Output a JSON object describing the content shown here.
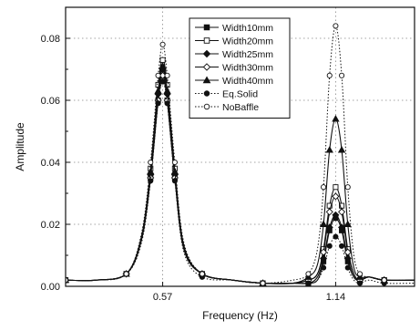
{
  "chart_data": {
    "type": "line",
    "title": "",
    "xlabel": "Frequency (Hz)",
    "ylabel": "Amplitude",
    "xlim": [
      0.25,
      1.4
    ],
    "ylim": [
      0,
      0.09
    ],
    "x_ticks": [
      0.57,
      1.14
    ],
    "x_tick_labels": [
      "0.57",
      "1.14"
    ],
    "y_ticks": [
      0,
      0.02,
      0.04,
      0.06,
      0.08
    ],
    "y_tick_labels": [
      "0.00",
      "0.02",
      "0.04",
      "0.06",
      "0.08"
    ],
    "grid": "dotted",
    "legend_position": "top-center",
    "series": [
      {
        "name": "Width10mm",
        "style": "solid",
        "marker": "filled-square",
        "x": [
          0.25,
          0.35,
          0.45,
          0.5,
          0.53,
          0.555,
          0.57,
          0.585,
          0.61,
          0.64,
          0.7,
          0.8,
          0.9,
          1.0,
          1.05,
          1.08,
          1.1,
          1.12,
          1.14,
          1.16,
          1.18,
          1.2,
          1.22,
          1.25,
          1.3,
          1.4
        ],
        "y": [
          0.002,
          0.002,
          0.004,
          0.015,
          0.035,
          0.06,
          0.068,
          0.06,
          0.035,
          0.012,
          0.004,
          0.002,
          0.001,
          0.001,
          0.001,
          0.002,
          0.008,
          0.018,
          0.022,
          0.018,
          0.008,
          0.003,
          0.002,
          0.003,
          0.002,
          0.002
        ]
      },
      {
        "name": "Width20mm",
        "style": "solid",
        "marker": "open-square",
        "x": [
          0.25,
          0.35,
          0.45,
          0.5,
          0.53,
          0.555,
          0.57,
          0.585,
          0.61,
          0.64,
          0.7,
          0.8,
          0.9,
          1.0,
          1.05,
          1.08,
          1.1,
          1.12,
          1.14,
          1.16,
          1.18,
          1.2,
          1.22,
          1.25,
          1.3,
          1.4
        ],
        "y": [
          0.002,
          0.002,
          0.004,
          0.016,
          0.038,
          0.065,
          0.073,
          0.065,
          0.038,
          0.013,
          0.004,
          0.002,
          0.001,
          0.001,
          0.002,
          0.004,
          0.012,
          0.026,
          0.032,
          0.026,
          0.012,
          0.004,
          0.002,
          0.003,
          0.002,
          0.002
        ]
      },
      {
        "name": "Width25mm",
        "style": "solid",
        "marker": "filled-diamond",
        "x": [
          0.25,
          0.35,
          0.45,
          0.5,
          0.53,
          0.555,
          0.57,
          0.585,
          0.61,
          0.64,
          0.7,
          0.8,
          0.9,
          1.0,
          1.05,
          1.08,
          1.1,
          1.12,
          1.14,
          1.16,
          1.18,
          1.2,
          1.22,
          1.25,
          1.3,
          1.4
        ],
        "y": [
          0.002,
          0.002,
          0.004,
          0.015,
          0.036,
          0.062,
          0.07,
          0.062,
          0.036,
          0.012,
          0.004,
          0.002,
          0.001,
          0.001,
          0.001,
          0.003,
          0.009,
          0.019,
          0.023,
          0.019,
          0.009,
          0.003,
          0.002,
          0.003,
          0.002,
          0.002
        ]
      },
      {
        "name": "Width30mm",
        "style": "solid",
        "marker": "open-diamond",
        "x": [
          0.25,
          0.35,
          0.45,
          0.5,
          0.53,
          0.555,
          0.57,
          0.585,
          0.61,
          0.64,
          0.7,
          0.8,
          0.9,
          1.0,
          1.05,
          1.08,
          1.1,
          1.12,
          1.14,
          1.16,
          1.18,
          1.2,
          1.22,
          1.25,
          1.3,
          1.4
        ],
        "y": [
          0.002,
          0.002,
          0.004,
          0.015,
          0.035,
          0.06,
          0.068,
          0.06,
          0.035,
          0.012,
          0.004,
          0.002,
          0.001,
          0.001,
          0.002,
          0.004,
          0.011,
          0.024,
          0.029,
          0.024,
          0.011,
          0.004,
          0.002,
          0.003,
          0.002,
          0.002
        ]
      },
      {
        "name": "Width40mm",
        "style": "solid",
        "marker": "filled-triangle",
        "x": [
          0.25,
          0.35,
          0.45,
          0.5,
          0.53,
          0.555,
          0.57,
          0.585,
          0.61,
          0.64,
          0.7,
          0.8,
          0.9,
          1.0,
          1.05,
          1.08,
          1.1,
          1.12,
          1.14,
          1.16,
          1.18,
          1.2,
          1.22,
          1.25,
          1.3,
          1.4
        ],
        "y": [
          0.002,
          0.002,
          0.004,
          0.016,
          0.037,
          0.063,
          0.071,
          0.063,
          0.037,
          0.013,
          0.004,
          0.002,
          0.001,
          0.001,
          0.003,
          0.007,
          0.02,
          0.044,
          0.054,
          0.044,
          0.02,
          0.006,
          0.003,
          0.003,
          0.002,
          0.002
        ]
      },
      {
        "name": "Eq.Solid",
        "style": "dotted",
        "marker": "filled-circle",
        "x": [
          0.25,
          0.35,
          0.45,
          0.5,
          0.53,
          0.555,
          0.57,
          0.585,
          0.61,
          0.64,
          0.7,
          0.8,
          0.9,
          1.0,
          1.05,
          1.08,
          1.1,
          1.12,
          1.14,
          1.16,
          1.18,
          1.2,
          1.22,
          1.25,
          1.3,
          1.4
        ],
        "y": [
          0.002,
          0.002,
          0.004,
          0.014,
          0.034,
          0.059,
          0.066,
          0.059,
          0.034,
          0.011,
          0.003,
          0.002,
          0.001,
          0.001,
          0.001,
          0.002,
          0.006,
          0.013,
          0.016,
          0.013,
          0.006,
          0.002,
          0.001,
          0.002,
          0.001,
          0.001
        ]
      },
      {
        "name": "NoBaffle",
        "style": "dotted",
        "marker": "open-circle",
        "x": [
          0.25,
          0.35,
          0.45,
          0.5,
          0.53,
          0.555,
          0.57,
          0.585,
          0.61,
          0.64,
          0.7,
          0.8,
          0.9,
          1.0,
          1.05,
          1.08,
          1.1,
          1.12,
          1.14,
          1.16,
          1.18,
          1.2,
          1.22,
          1.25,
          1.3,
          1.4
        ],
        "y": [
          0.002,
          0.002,
          0.004,
          0.017,
          0.04,
          0.068,
          0.078,
          0.068,
          0.04,
          0.014,
          0.004,
          0.002,
          0.001,
          0.002,
          0.004,
          0.012,
          0.032,
          0.068,
          0.084,
          0.068,
          0.032,
          0.01,
          0.004,
          0.003,
          0.002,
          0.002
        ]
      }
    ]
  }
}
